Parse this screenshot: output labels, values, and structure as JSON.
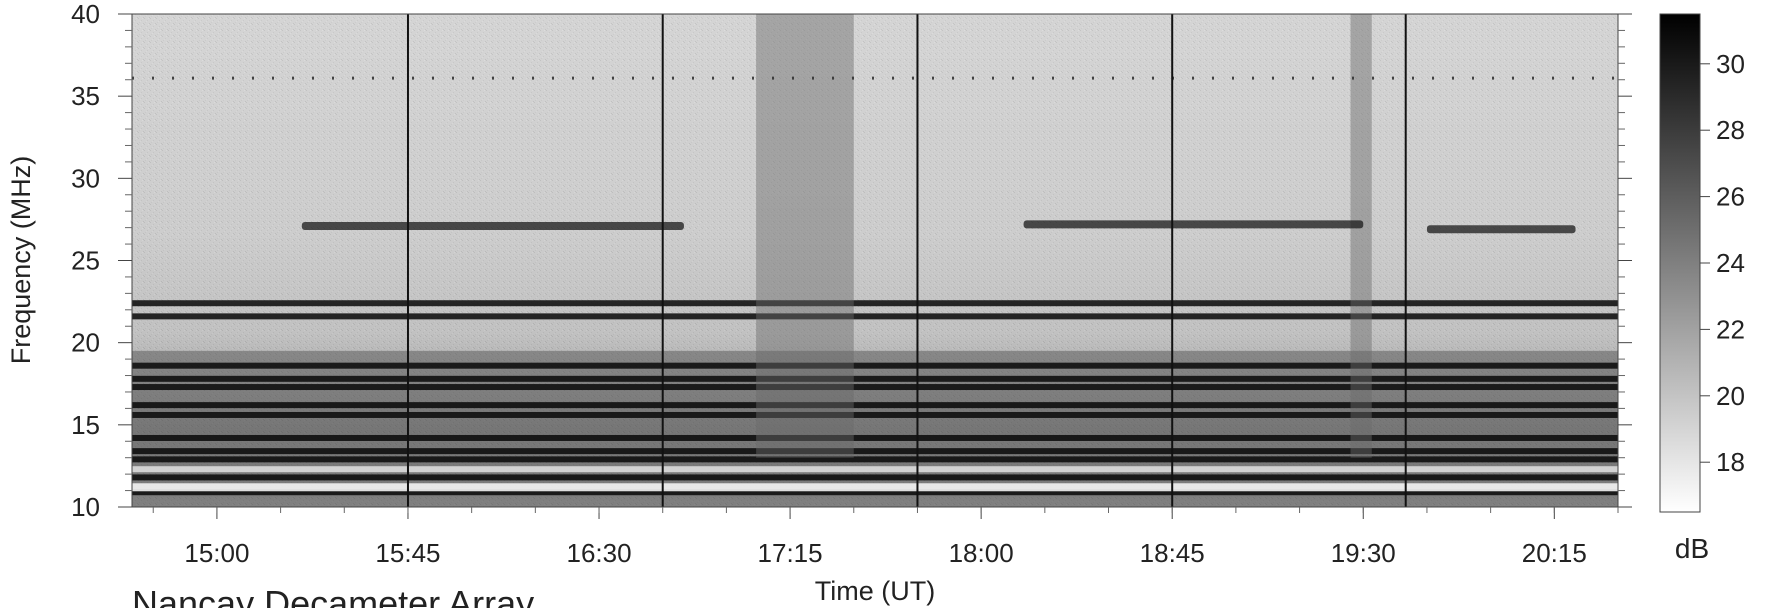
{
  "chart_data": {
    "type": "heatmap",
    "title": "",
    "footer_label": "Nancay Decameter Array",
    "xlabel": "Time (UT)",
    "ylabel": "Frequency (MHz)",
    "x_ticks": [
      "15:00",
      "15:45",
      "16:30",
      "17:15",
      "18:00",
      "18:45",
      "19:30",
      "20:15"
    ],
    "x_range": [
      "14:40",
      "20:30"
    ],
    "y_ticks": [
      10,
      15,
      20,
      25,
      30,
      35,
      40
    ],
    "ylim": [
      10,
      40
    ],
    "colorbar": {
      "label": "dB",
      "ticks": [
        18,
        20,
        22,
        24,
        26,
        28,
        30
      ],
      "range": [
        16.5,
        31.5
      ],
      "colors": [
        "#ffffff",
        "#000000"
      ]
    },
    "features": {
      "narrowband_lines_mhz": [
        10.9,
        11.8,
        12.9,
        13.4,
        14.2,
        15.6,
        16.2,
        17.3,
        17.8,
        18.6,
        21.6,
        22.4
      ],
      "emission_band_27mhz": [
        {
          "start": "15:20",
          "end": "16:50",
          "freq": 27.1
        },
        {
          "start": "18:10",
          "end": "19:30",
          "freq": 27.2
        },
        {
          "start": "19:45",
          "end": "20:20",
          "freq": 26.9
        }
      ],
      "broadband_bursts": [
        {
          "start": "17:07",
          "end": "17:30"
        },
        {
          "start": "19:27",
          "end": "19:32"
        }
      ],
      "time_markers": [
        "15:45",
        "16:45",
        "17:45",
        "18:45",
        "19:40"
      ]
    }
  }
}
